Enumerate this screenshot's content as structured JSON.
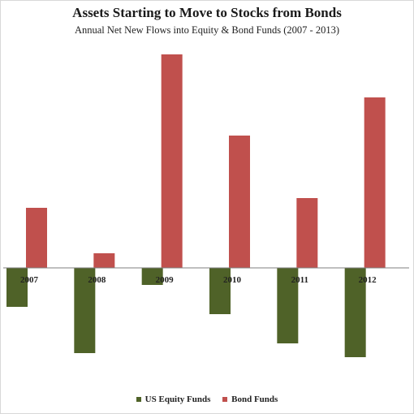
{
  "chart_data": {
    "type": "bar",
    "title": "Assets Starting to Move to Stocks from Bonds",
    "subtitle": "Annual Net New Flows into Equity & Bond Funds (2007 - 2013)",
    "categories": [
      "2007",
      "2008",
      "2009",
      "2010",
      "2011",
      "2012"
    ],
    "series": [
      {
        "name": "US Equity Funds",
        "color": "#4f6228",
        "values": [
          -48,
          -105,
          -21,
          -57,
          -93,
          -110
        ]
      },
      {
        "name": "Bond Funds",
        "color": "#c0504d",
        "values": [
          74,
          18,
          263,
          163,
          86,
          210
        ]
      }
    ],
    "ylim": [
      -180,
      270
    ],
    "grid": false,
    "legend_position": "bottom"
  }
}
